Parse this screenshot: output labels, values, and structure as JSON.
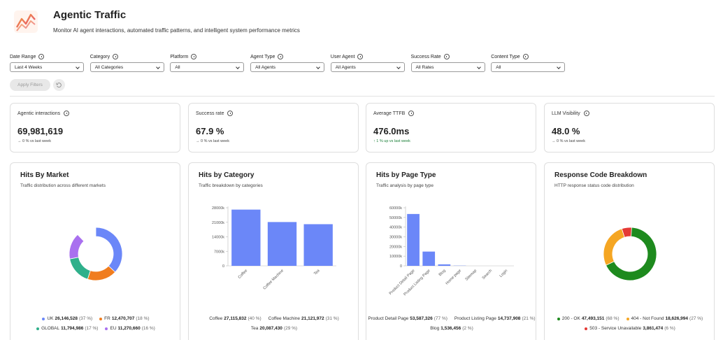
{
  "header": {
    "title": "Agentic Traffic",
    "subtitle": "Monitor AI agent interactions, automated traffic patterns, and intelligent system performance metrics"
  },
  "filters": [
    {
      "label": "Date Range",
      "value": "Last 4 Weeks"
    },
    {
      "label": "Category",
      "value": "All Categories"
    },
    {
      "label": "Platform",
      "value": "All"
    },
    {
      "label": "Agent Type",
      "value": "All Agents"
    },
    {
      "label": "User Agent",
      "value": "All Agents"
    },
    {
      "label": "Success Rate",
      "value": "All Rates"
    },
    {
      "label": "Content Type",
      "value": "All"
    }
  ],
  "apply_button": "Apply Filters",
  "kpis": [
    {
      "label": "Agentic interactions",
      "value": "69,981,619",
      "change": "→ 0 % vs last week"
    },
    {
      "label": "Success rate",
      "value": "67.9 %",
      "change": "→ 0 % vs last week"
    },
    {
      "label": "Average TTFB",
      "value": "476.0ms",
      "change": "↑ 1 % up vs last week"
    },
    {
      "label": "LLM Visibility",
      "value": "48.0 %",
      "change": "→ 0 % vs last week"
    }
  ],
  "chart_data": [
    {
      "type": "donut",
      "title": "Hits By Market",
      "subtitle": "Traffic distribution across different markets",
      "categories": [
        "UK",
        "FR",
        "GLOBAL",
        "EU"
      ],
      "values": [
        26146528,
        12470707,
        11794986,
        11270660
      ],
      "value_labels": [
        "26,146,528",
        "12,470,707",
        "11,794,986",
        "11,270,660"
      ],
      "percents": [
        37,
        18,
        17,
        16
      ],
      "percent_labels": [
        "(37 %)",
        "(18 %)",
        "(17 %)",
        "(16 %)"
      ],
      "colors": [
        "#6b87f8",
        "#f07d1f",
        "#2fb08b",
        "#a970ef"
      ]
    },
    {
      "type": "bar",
      "title": "Hits by Category",
      "subtitle": "Traffic breakdown by categories",
      "categories": [
        "Coffee",
        "Coffee Machine",
        "Tea"
      ],
      "values": [
        27115832,
        21121972,
        20087430
      ],
      "value_labels": [
        "27,115,832",
        "21,121,972",
        "20,087,430"
      ],
      "percents": [
        40,
        31,
        29
      ],
      "percent_labels": [
        "(40 %)",
        "(31 %)",
        "(29 %)"
      ],
      "color": "#6b87f8",
      "ylim": [
        0,
        28000000
      ],
      "yticks": [
        0,
        {
          "value": 7000000,
          "label": "7000k"
        },
        {
          "value": 14000000,
          "label": "14000k"
        },
        {
          "value": 21000000,
          "label": "21000k"
        },
        {
          "value": 28000000,
          "label": "28000k"
        }
      ]
    },
    {
      "type": "bar",
      "title": "Hits by Page Type",
      "subtitle": "Traffic analysis by page type",
      "categories": [
        "Product Detail Page",
        "Product Listing Page",
        "Blog",
        "Home page",
        "Sitemap",
        "Search",
        "Login"
      ],
      "values": [
        53587326,
        14737908,
        1536456,
        200000,
        0,
        0,
        0
      ],
      "value_labels": [
        "53,587,326",
        "14,737,908",
        "1,536,456",
        null,
        null,
        null,
        null
      ],
      "percents": [
        77,
        21,
        2,
        null,
        null,
        null,
        null
      ],
      "percent_labels": [
        "(77 %)",
        "(21 %)",
        "(2 %)",
        null,
        null,
        null,
        null
      ],
      "color": "#6b87f8",
      "ylim": [
        0,
        60000000
      ],
      "yticks": [
        0,
        {
          "value": 10000000,
          "label": "10000k"
        },
        {
          "value": 20000000,
          "label": "20000k"
        },
        {
          "value": 30000000,
          "label": "30000k"
        },
        {
          "value": 40000000,
          "label": "40000k"
        },
        {
          "value": 50000000,
          "label": "50000k"
        },
        {
          "value": 60000000,
          "label": "60000k"
        }
      ]
    },
    {
      "type": "donut",
      "title": "Response Code Breakdown",
      "subtitle": "HTTP response status code distribution",
      "categories": [
        "200 - OK",
        "404 - Not Found",
        "503 - Service Unavailable"
      ],
      "values": [
        47493151,
        18626994,
        3861474
      ],
      "value_labels": [
        "47,493,151",
        "18,626,994",
        "3,861,474"
      ],
      "percents": [
        68,
        27,
        6
      ],
      "percent_labels": [
        "(68 %)",
        "(27 %)",
        "(6 %)"
      ],
      "colors": [
        "#1e8a1e",
        "#f5a623",
        "#e53935"
      ]
    }
  ]
}
